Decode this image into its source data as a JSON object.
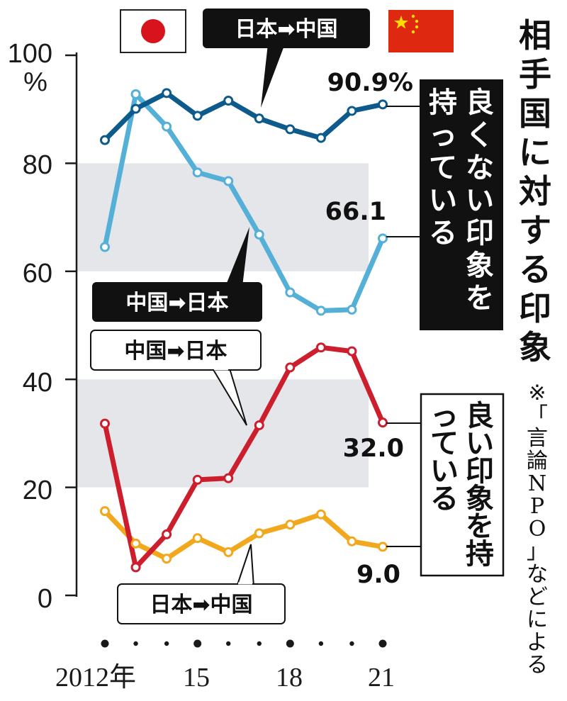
{
  "chart_data": {
    "type": "line",
    "title": "相手国に対する印象",
    "note": "※「言論NPO」などによる",
    "y_unit": "%",
    "ylim": [
      0,
      100
    ],
    "y_ticks": [
      "0",
      "20",
      "40",
      "60",
      "80",
      "100"
    ],
    "x": [
      2012,
      2013,
      2014,
      2015,
      2016,
      2017,
      2018,
      2019,
      2020,
      2021
    ],
    "x_tick_labels": [
      {
        "year": 2012,
        "label": "2012年"
      },
      {
        "year": 2015,
        "label": "15"
      },
      {
        "year": 2018,
        "label": "18"
      },
      {
        "year": 2021,
        "label": "21"
      }
    ],
    "group_labels": {
      "negative": "良くない印象を持っている",
      "positive": "良い印象を持っている"
    },
    "series": [
      {
        "name": "日本➡中国",
        "group": "negative",
        "color": "#0d5a8c",
        "values": [
          84.3,
          90.1,
          93.0,
          88.8,
          91.6,
          88.3,
          86.3,
          84.7,
          89.7,
          90.9
        ]
      },
      {
        "name": "中国➡日本",
        "group": "negative",
        "color": "#55b0d8",
        "values": [
          64.5,
          92.8,
          86.8,
          78.3,
          76.7,
          66.8,
          56.1,
          52.7,
          52.9,
          66.1
        ]
      },
      {
        "name": "中国➡日本",
        "group": "positive",
        "color": "#cc1e2c",
        "values": [
          31.8,
          5.2,
          11.3,
          21.4,
          21.7,
          31.5,
          42.2,
          45.9,
          45.2,
          32.0
        ]
      },
      {
        "name": "日本➡中国",
        "group": "positive",
        "color": "#f2a81d",
        "values": [
          15.6,
          9.6,
          6.8,
          10.6,
          8.0,
          11.5,
          13.1,
          15.0,
          10.0,
          9.0
        ]
      }
    ],
    "end_labels": [
      "90.9%",
      "66.1",
      "32.0",
      "9.0"
    ],
    "shaded_bands": [
      [
        20,
        40
      ],
      [
        60,
        80
      ]
    ],
    "flags": {
      "japan": "japan-flag-icon",
      "china": "china-flag-icon"
    }
  }
}
